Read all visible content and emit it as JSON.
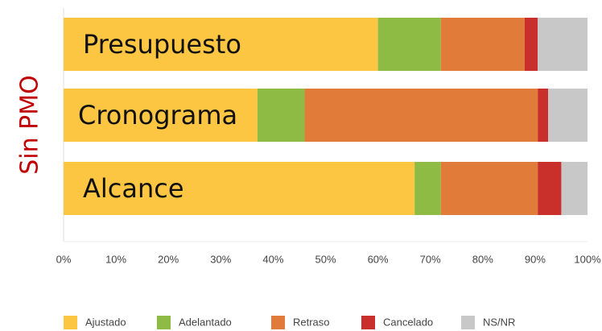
{
  "chart_data": {
    "type": "stacked_bar_horizontal",
    "y_label": "Sin PMO",
    "categories": [
      "Presupuesto",
      "Cronograma",
      "Alcance"
    ],
    "series": [
      {
        "name": "Ajustado",
        "color": "#fcc542",
        "values": [
          60,
          37,
          67
        ]
      },
      {
        "name": "Adelantado",
        "color": "#8dbb44",
        "values": [
          12,
          9,
          5
        ]
      },
      {
        "name": "Retraso",
        "color": "#e07b39",
        "values": [
          16,
          44.5,
          18.5
        ]
      },
      {
        "name": "Cancelado",
        "color": "#c9302c",
        "values": [
          2.5,
          2,
          4.5
        ]
      },
      {
        "name": "NS/NR",
        "color": "#c8c8c8",
        "values": [
          9.5,
          7.5,
          5
        ]
      }
    ],
    "xlim": [
      0,
      100
    ],
    "xticks": [
      {
        "value": 0,
        "label": "0%"
      },
      {
        "value": 10,
        "label": "10%"
      },
      {
        "value": 20,
        "label": "20%"
      },
      {
        "value": 30,
        "label": "30%"
      },
      {
        "value": 40,
        "label": "40%"
      },
      {
        "value": 50,
        "label": "50%"
      },
      {
        "value": 60,
        "label": "60%"
      },
      {
        "value": 70,
        "label": "70%"
      },
      {
        "value": 80,
        "label": "80%"
      },
      {
        "value": 90,
        "label": "90%"
      },
      {
        "value": 100,
        "label": "100%"
      }
    ],
    "legend": "bottom"
  }
}
